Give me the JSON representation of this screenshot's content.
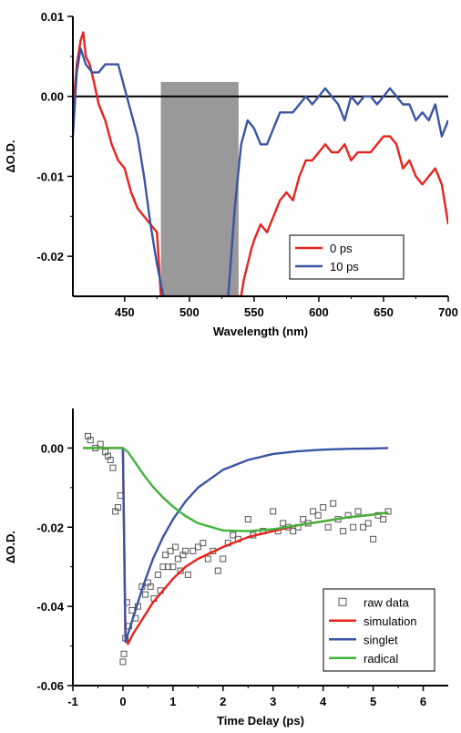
{
  "chart_data": [
    {
      "type": "line",
      "xlabel": "Wavelength (nm)",
      "ylabel": "ΔO.D.",
      "xlim": [
        410,
        700
      ],
      "ylim": [
        -0.025,
        0.01
      ],
      "xticks": [
        450,
        500,
        550,
        600,
        650,
        700
      ],
      "xtick_labels": [
        "450",
        "500",
        "550",
        "600",
        "650",
        "700"
      ],
      "yticks": [
        0.01,
        0.0,
        -0.01,
        -0.02
      ],
      "ytick_labels": [
        "0.01",
        "0.00",
        "-0.01",
        "-0.02"
      ],
      "grid": false,
      "zero_line": true,
      "shaded_region": {
        "x": [
          478,
          538
        ],
        "y_top": 0.0018
      },
      "legend_position": "bottom-right",
      "series": [
        {
          "name": "0 ps",
          "color": "#e8221c",
          "x": [
            410,
            413,
            416,
            418,
            420,
            423,
            426,
            430,
            435,
            440,
            445,
            450,
            455,
            460,
            465,
            470,
            475,
            478,
            540,
            542,
            545,
            548,
            550,
            555,
            560,
            565,
            570,
            575,
            580,
            585,
            590,
            595,
            600,
            605,
            610,
            615,
            620,
            625,
            630,
            635,
            640,
            645,
            650,
            655,
            660,
            665,
            670,
            675,
            680,
            685,
            690,
            695,
            700
          ],
          "y": [
            -0.002,
            0.004,
            0.007,
            0.008,
            0.005,
            0.004,
            0.002,
            -0.001,
            -0.003,
            -0.006,
            -0.008,
            -0.009,
            -0.012,
            -0.014,
            -0.015,
            -0.016,
            -0.017,
            -0.025,
            -0.025,
            -0.023,
            -0.021,
            -0.019,
            -0.018,
            -0.016,
            -0.017,
            -0.015,
            -0.013,
            -0.012,
            -0.013,
            -0.01,
            -0.008,
            -0.008,
            -0.007,
            -0.006,
            -0.007,
            -0.007,
            -0.006,
            -0.008,
            -0.007,
            -0.007,
            -0.007,
            -0.006,
            -0.005,
            -0.005,
            -0.006,
            -0.009,
            -0.008,
            -0.01,
            -0.011,
            -0.01,
            -0.009,
            -0.011,
            -0.016
          ]
        },
        {
          "name": "10 ps",
          "color": "#3a54a4",
          "x": [
            410,
            413,
            416,
            420,
            425,
            430,
            435,
            440,
            445,
            450,
            455,
            460,
            465,
            470,
            475,
            480,
            530,
            535,
            540,
            545,
            550,
            555,
            560,
            565,
            570,
            575,
            580,
            585,
            590,
            595,
            600,
            605,
            610,
            615,
            620,
            625,
            630,
            635,
            640,
            645,
            650,
            655,
            660,
            665,
            670,
            675,
            680,
            685,
            690,
            695,
            700
          ],
          "y": [
            -0.005,
            0.003,
            0.006,
            0.004,
            0.003,
            0.003,
            0.004,
            0.004,
            0.004,
            0.001,
            -0.002,
            -0.005,
            -0.01,
            -0.016,
            -0.021,
            -0.025,
            -0.025,
            -0.014,
            -0.006,
            -0.003,
            -0.004,
            -0.006,
            -0.006,
            -0.004,
            -0.002,
            -0.002,
            -0.002,
            -0.001,
            0.0,
            -0.001,
            0.0,
            0.001,
            0.0,
            -0.001,
            -0.003,
            0.0,
            -0.001,
            0.0,
            0.0,
            -0.001,
            0.0,
            0.001,
            0.0,
            -0.001,
            -0.001,
            -0.003,
            -0.002,
            -0.003,
            -0.001,
            -0.005,
            -0.003
          ]
        }
      ]
    },
    {
      "type": "line",
      "xlabel": "Time Delay (ps)",
      "ylabel": "ΔO.D.",
      "xlim": [
        -1,
        6.5
      ],
      "ylim": [
        -0.06,
        0.01
      ],
      "xticks": [
        -1,
        0,
        1,
        2,
        3,
        4,
        5,
        6
      ],
      "xtick_labels": [
        "-1",
        "0",
        "1",
        "2",
        "3",
        "4",
        "5",
        "6"
      ],
      "yticks": [
        0.0,
        -0.02,
        -0.04,
        -0.06
      ],
      "ytick_labels": [
        "0.00",
        "-0.02",
        "-0.04",
        "-0.06"
      ],
      "grid": false,
      "legend_position": "bottom-right",
      "series": [
        {
          "name": "raw data",
          "style": "open-square",
          "color": "#555555",
          "x": [
            -0.7,
            -0.65,
            -0.55,
            -0.45,
            -0.35,
            -0.3,
            -0.25,
            -0.2,
            -0.15,
            -0.1,
            -0.05,
            0.0,
            0.02,
            0.05,
            0.08,
            0.12,
            0.18,
            0.25,
            0.3,
            0.38,
            0.45,
            0.5,
            0.55,
            0.62,
            0.7,
            0.75,
            0.8,
            0.85,
            0.9,
            0.95,
            1.0,
            1.05,
            1.1,
            1.15,
            1.2,
            1.25,
            1.3,
            1.4,
            1.5,
            1.6,
            1.7,
            1.8,
            1.9,
            2.0,
            2.1,
            2.2,
            2.3,
            2.5,
            2.6,
            2.8,
            3.0,
            3.1,
            3.2,
            3.3,
            3.4,
            3.5,
            3.6,
            3.7,
            3.8,
            3.9,
            4.0,
            4.1,
            4.2,
            4.3,
            4.4,
            4.5,
            4.6,
            4.7,
            4.8,
            4.9,
            5.0,
            5.1,
            5.2,
            5.3
          ],
          "y": [
            0.003,
            0.002,
            0.0,
            0.001,
            -0.001,
            -0.002,
            -0.003,
            -0.005,
            -0.016,
            -0.015,
            -0.012,
            -0.054,
            -0.052,
            -0.048,
            -0.039,
            -0.045,
            -0.041,
            -0.043,
            -0.04,
            -0.035,
            -0.037,
            -0.034,
            -0.035,
            -0.038,
            -0.032,
            -0.036,
            -0.03,
            -0.027,
            -0.03,
            -0.026,
            -0.03,
            -0.025,
            -0.028,
            -0.031,
            -0.027,
            -0.026,
            -0.032,
            -0.026,
            -0.025,
            -0.024,
            -0.028,
            -0.026,
            -0.031,
            -0.028,
            -0.024,
            -0.022,
            -0.023,
            -0.018,
            -0.022,
            -0.021,
            -0.016,
            -0.021,
            -0.019,
            -0.02,
            -0.021,
            -0.02,
            -0.018,
            -0.019,
            -0.016,
            -0.017,
            -0.015,
            -0.02,
            -0.014,
            -0.018,
            -0.021,
            -0.017,
            -0.02,
            -0.016,
            -0.02,
            -0.019,
            -0.023,
            -0.017,
            -0.018,
            -0.016
          ]
        },
        {
          "name": "simulation",
          "color": "#e8221c",
          "x": [
            -0.8,
            -0.3,
            0.0,
            0.05,
            0.1,
            0.2,
            0.4,
            0.6,
            0.8,
            1.0,
            1.25,
            1.5,
            2.0,
            2.5,
            3.0,
            3.5,
            4.0,
            4.5,
            5.0,
            5.3
          ],
          "y": [
            0.0,
            0.0,
            0.0,
            -0.047,
            -0.0495,
            -0.047,
            -0.043,
            -0.039,
            -0.036,
            -0.033,
            -0.03,
            -0.028,
            -0.025,
            -0.0225,
            -0.021,
            -0.0195,
            -0.0185,
            -0.0175,
            -0.0168,
            -0.0163
          ]
        },
        {
          "name": "singlet",
          "color": "#3a54a4",
          "x": [
            0.0,
            0.05,
            0.1,
            0.2,
            0.4,
            0.6,
            0.8,
            1.0,
            1.25,
            1.5,
            2.0,
            2.5,
            3.0,
            3.5,
            4.0,
            4.5,
            5.0,
            5.3
          ],
          "y": [
            0.0,
            -0.049,
            -0.047,
            -0.043,
            -0.035,
            -0.028,
            -0.0225,
            -0.018,
            -0.0135,
            -0.01,
            -0.0055,
            -0.003,
            -0.0015,
            -0.0008,
            -0.0004,
            -0.0002,
            -0.0001,
            0.0
          ]
        },
        {
          "name": "radical",
          "color": "#3fb43a",
          "x": [
            -0.8,
            0.0,
            0.1,
            0.2,
            0.4,
            0.6,
            0.8,
            1.0,
            1.25,
            1.5,
            2.0,
            2.5,
            3.0,
            3.5,
            4.0,
            4.5,
            5.0,
            5.3
          ],
          "y": [
            0.0,
            0.0,
            -0.001,
            -0.0028,
            -0.0065,
            -0.0098,
            -0.0125,
            -0.0148,
            -0.0172,
            -0.019,
            -0.0208,
            -0.021,
            -0.0205,
            -0.0195,
            -0.0185,
            -0.0175,
            -0.0168,
            -0.0163
          ]
        }
      ]
    }
  ]
}
